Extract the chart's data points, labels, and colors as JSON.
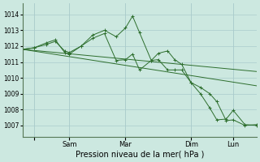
{
  "background_color": "#cce8e0",
  "grid_color": "#aacccc",
  "line_color": "#2d6e2d",
  "xlabel": "Pression niveau de la mer( hPa )",
  "ylim": [
    1006.3,
    1014.7
  ],
  "yticks": [
    1007,
    1008,
    1009,
    1010,
    1011,
    1012,
    1013,
    1014
  ],
  "xlim": [
    0,
    100
  ],
  "xtick_positions": [
    5,
    20,
    44,
    72,
    90
  ],
  "xtick_labels": [
    "",
    "Sam",
    "Mar",
    "Dim",
    "Lun"
  ],
  "series_jagged_1": {
    "x": [
      0,
      5,
      10,
      14,
      18,
      20,
      25,
      30,
      35,
      40,
      44,
      47,
      50,
      55,
      58,
      62,
      65,
      68,
      72,
      76,
      80,
      83,
      87,
      90,
      95,
      100
    ],
    "y": [
      1011.8,
      1011.9,
      1012.2,
      1012.4,
      1011.6,
      1011.5,
      1012.0,
      1012.7,
      1013.0,
      1012.6,
      1013.15,
      1013.9,
      1012.85,
      1011.1,
      1011.55,
      1011.7,
      1011.15,
      1010.85,
      1009.7,
      1009.0,
      1008.1,
      1007.35,
      1007.4,
      1007.95,
      1007.05,
      1007.0
    ]
  },
  "series_jagged_2": {
    "x": [
      0,
      5,
      10,
      14,
      18,
      20,
      25,
      30,
      35,
      40,
      44,
      47,
      50,
      55,
      58,
      62,
      65,
      68,
      72,
      76,
      80,
      83,
      87,
      90,
      95,
      100
    ],
    "y": [
      1011.8,
      1011.9,
      1012.1,
      1012.3,
      1011.7,
      1011.6,
      1012.0,
      1012.5,
      1012.8,
      1011.1,
      1011.15,
      1011.5,
      1010.5,
      1011.1,
      1011.15,
      1010.5,
      1010.5,
      1010.5,
      1009.7,
      1009.4,
      1009.0,
      1008.5,
      1007.3,
      1007.35,
      1007.0,
      1007.05
    ]
  },
  "series_straight_1": {
    "x": [
      0,
      100
    ],
    "y": [
      1011.8,
      1010.4
    ]
  },
  "series_straight_2": {
    "x": [
      0,
      100
    ],
    "y": [
      1011.8,
      1009.5
    ]
  }
}
